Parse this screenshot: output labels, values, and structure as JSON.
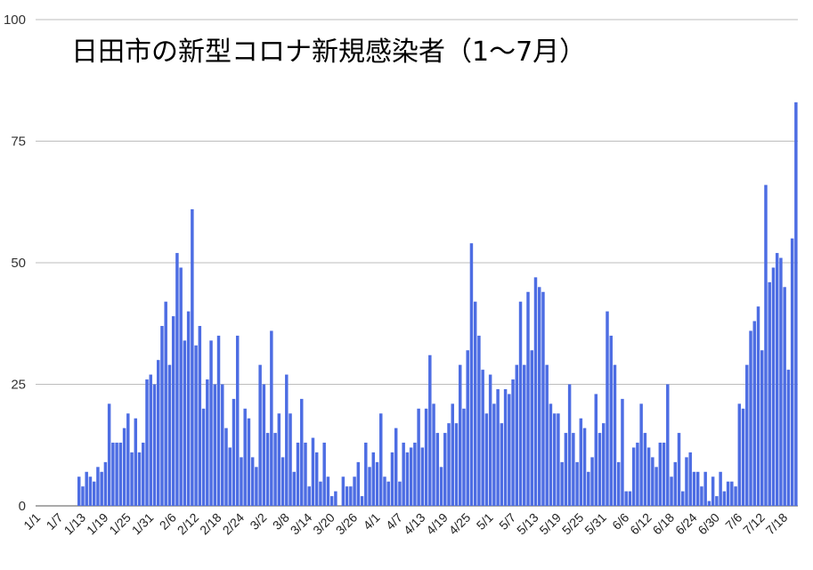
{
  "chart_data": {
    "type": "bar",
    "title": "日田市の新型コロナ新規感染者（1〜7月）",
    "xlabel": "",
    "ylabel": "",
    "ylim": [
      0,
      100
    ],
    "yticks": [
      0,
      25,
      50,
      75,
      100
    ],
    "grid": true,
    "legend": "none",
    "bar_color": "#4d6de3",
    "tick_labels": [
      "1/1",
      "1/7",
      "1/13",
      "1/19",
      "1/25",
      "1/31",
      "2/6",
      "2/12",
      "2/18",
      "2/24",
      "3/2",
      "3/8",
      "3/14",
      "3/20",
      "3/26",
      "4/1",
      "4/7",
      "4/13",
      "4/19",
      "4/25",
      "5/1",
      "5/7",
      "5/13",
      "5/19",
      "5/25",
      "5/31",
      "6/6",
      "6/12",
      "6/18",
      "6/24",
      "6/30",
      "7/6",
      "7/12",
      "7/18"
    ],
    "start_label": "1/1",
    "values": [
      0,
      0,
      0,
      0,
      0,
      0,
      0,
      0,
      0,
      0,
      0,
      6,
      4,
      7,
      6,
      5,
      8,
      7,
      9,
      21,
      13,
      13,
      13,
      16,
      19,
      11,
      18,
      11,
      13,
      26,
      27,
      25,
      30,
      37,
      42,
      29,
      39,
      52,
      49,
      34,
      40,
      61,
      33,
      37,
      20,
      26,
      34,
      25,
      35,
      25,
      16,
      12,
      22,
      35,
      10,
      20,
      18,
      10,
      8,
      29,
      25,
      15,
      36,
      15,
      19,
      10,
      27,
      19,
      7,
      13,
      22,
      13,
      4,
      14,
      11,
      5,
      13,
      6,
      2,
      3,
      0,
      6,
      4,
      4,
      6,
      9,
      2,
      13,
      8,
      11,
      9,
      19,
      6,
      5,
      11,
      16,
      5,
      13,
      11,
      12,
      13,
      20,
      12,
      20,
      31,
      21,
      15,
      8,
      15,
      17,
      21,
      17,
      29,
      20,
      32,
      54,
      42,
      35,
      28,
      19,
      27,
      21,
      24,
      17,
      24,
      23,
      26,
      29,
      42,
      29,
      44,
      32,
      47,
      45,
      44,
      29,
      21,
      19,
      19,
      9,
      15,
      25,
      15,
      9,
      18,
      16,
      7,
      10,
      23,
      15,
      17,
      40,
      35,
      29,
      9,
      22,
      3,
      3,
      12,
      13,
      21,
      15,
      12,
      10,
      8,
      13,
      13,
      25,
      6,
      9,
      15,
      3,
      10,
      11,
      7,
      7,
      4,
      7,
      1,
      6,
      2,
      7,
      3,
      5,
      5,
      4,
      21,
      20,
      29,
      36,
      38,
      41,
      32,
      66,
      46,
      49,
      52,
      51,
      45,
      28,
      55,
      83
    ]
  }
}
